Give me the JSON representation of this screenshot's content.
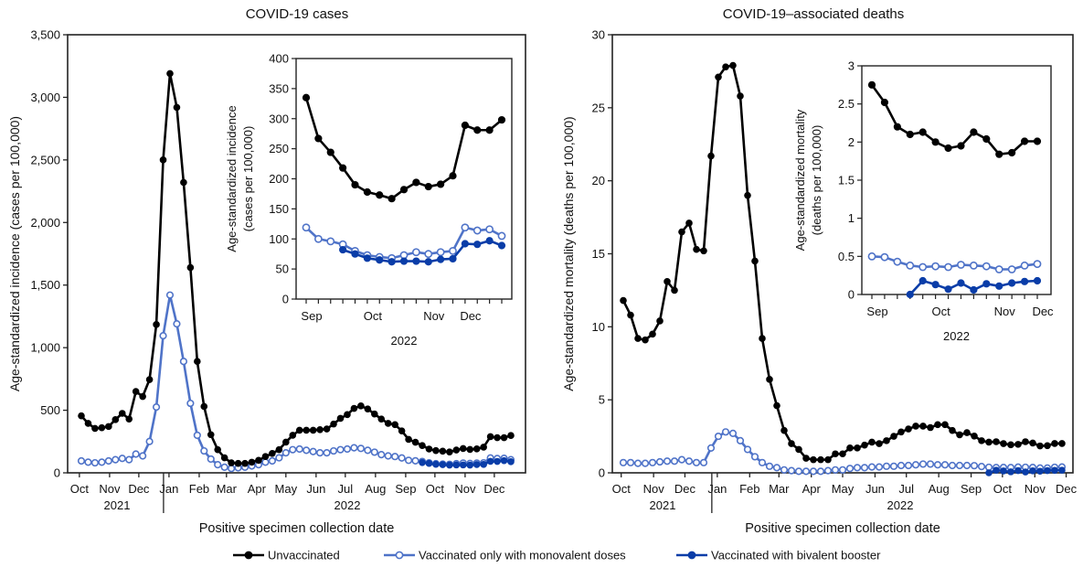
{
  "legend": {
    "items": [
      {
        "label": "Unvaccinated",
        "color": "#000000",
        "marker": "filled"
      },
      {
        "label": "Vaccinated only with monovalent doses",
        "color": "#4f73c8",
        "marker": "open"
      },
      {
        "label": "Vaccinated with bivalent booster",
        "color": "#0a3da8",
        "marker": "filled"
      }
    ]
  },
  "chart_data": [
    {
      "type": "line",
      "title": "COVID-19 cases",
      "xlabel": "Positive specimen collection date",
      "ylabel": "Age-standardized incidence (cases per 100,000)",
      "ylim": [
        0,
        3500
      ],
      "yticks": [
        0,
        500,
        1000,
        1500,
        2000,
        2500,
        3000,
        3500
      ],
      "ytick_labels": [
        "0",
        "500",
        "1,000",
        "1,500",
        "2,000",
        "2,500",
        "3,000",
        "3,500"
      ],
      "xticks": [
        {
          "date": "2021-10-01",
          "label": "Oct"
        },
        {
          "date": "2021-11-01",
          "label": "Nov"
        },
        {
          "date": "2021-12-01",
          "label": "Dec"
        },
        {
          "date": "2022-01-01",
          "label": "Jan"
        },
        {
          "date": "2022-02-01",
          "label": "Feb"
        },
        {
          "date": "2022-03-01",
          "label": "Mar"
        },
        {
          "date": "2022-04-01",
          "label": "Apr"
        },
        {
          "date": "2022-05-01",
          "label": "May"
        },
        {
          "date": "2022-06-01",
          "label": "Jun"
        },
        {
          "date": "2022-07-01",
          "label": "Jul"
        },
        {
          "date": "2022-08-01",
          "label": "Aug"
        },
        {
          "date": "2022-09-01",
          "label": "Sep"
        },
        {
          "date": "2022-10-01",
          "label": "Oct"
        },
        {
          "date": "2022-11-01",
          "label": "Nov"
        },
        {
          "date": "2022-12-01",
          "label": "Dec"
        }
      ],
      "year_labels": [
        "2021",
        "2022"
      ],
      "grid": false,
      "x": [
        "2021-10-03",
        "2021-10-10",
        "2021-10-17",
        "2021-10-24",
        "2021-10-31",
        "2021-11-07",
        "2021-11-14",
        "2021-11-21",
        "2021-11-28",
        "2021-12-05",
        "2021-12-12",
        "2021-12-19",
        "2021-12-26",
        "2022-01-02",
        "2022-01-09",
        "2022-01-16",
        "2022-01-23",
        "2022-01-30",
        "2022-02-06",
        "2022-02-13",
        "2022-02-20",
        "2022-02-27",
        "2022-03-06",
        "2022-03-13",
        "2022-03-20",
        "2022-03-27",
        "2022-04-03",
        "2022-04-10",
        "2022-04-17",
        "2022-04-24",
        "2022-05-01",
        "2022-05-08",
        "2022-05-15",
        "2022-05-22",
        "2022-05-29",
        "2022-06-05",
        "2022-06-12",
        "2022-06-19",
        "2022-06-26",
        "2022-07-03",
        "2022-07-10",
        "2022-07-17",
        "2022-07-24",
        "2022-07-31",
        "2022-08-07",
        "2022-08-14",
        "2022-08-21",
        "2022-08-28",
        "2022-09-04",
        "2022-09-11",
        "2022-09-18",
        "2022-09-25",
        "2022-10-02",
        "2022-10-09",
        "2022-10-16",
        "2022-10-23",
        "2022-10-30",
        "2022-11-06",
        "2022-11-13",
        "2022-11-20",
        "2022-11-27",
        "2022-12-04",
        "2022-12-11",
        "2022-12-18"
      ],
      "series": [
        {
          "name": "Vaccinated only with monovalent doses",
          "color": "#4f73c8",
          "marker": "open",
          "values": [
            95,
            85,
            80,
            85,
            95,
            105,
            115,
            105,
            150,
            135,
            250,
            525,
            1095,
            1420,
            1190,
            890,
            555,
            300,
            175,
            110,
            65,
            45,
            35,
            40,
            45,
            55,
            65,
            85,
            95,
            120,
            160,
            185,
            190,
            180,
            170,
            160,
            160,
            175,
            185,
            190,
            200,
            195,
            180,
            165,
            145,
            135,
            130,
            119,
            100,
            96,
            91,
            80,
            73,
            70,
            68,
            73,
            78,
            75,
            78,
            80,
            119,
            114,
            116,
            105
          ]
        },
        {
          "name": "Vaccinated with bivalent booster",
          "color": "#0a3da8",
          "marker": "filled",
          "values": [
            null,
            null,
            null,
            null,
            null,
            null,
            null,
            null,
            null,
            null,
            null,
            null,
            null,
            null,
            null,
            null,
            null,
            null,
            null,
            null,
            null,
            null,
            null,
            null,
            null,
            null,
            null,
            null,
            null,
            null,
            null,
            null,
            null,
            null,
            null,
            null,
            null,
            null,
            null,
            null,
            null,
            null,
            null,
            null,
            null,
            null,
            null,
            null,
            null,
            null,
            82,
            75,
            68,
            65,
            62,
            63,
            63,
            62,
            66,
            67,
            92,
            91,
            97,
            89
          ]
        },
        {
          "name": "Unvaccinated",
          "color": "#000000",
          "marker": "filled",
          "values": [
            455,
            395,
            355,
            360,
            370,
            425,
            475,
            430,
            650,
            610,
            745,
            1185,
            2500,
            3190,
            2920,
            2320,
            1640,
            890,
            530,
            305,
            185,
            120,
            80,
            75,
            75,
            85,
            100,
            130,
            155,
            185,
            245,
            300,
            340,
            340,
            340,
            345,
            350,
            390,
            435,
            465,
            515,
            535,
            510,
            470,
            430,
            395,
            385,
            335,
            267,
            244,
            218,
            190,
            178,
            173,
            167,
            182,
            194,
            187,
            191,
            205,
            289,
            281,
            281,
            298
          ]
        }
      ],
      "inset": {
        "ylabel_lines": [
          "Age-standardized incidence",
          "(cases per 100,000)"
        ],
        "ylim": [
          0,
          400
        ],
        "yticks": [
          0,
          50,
          100,
          150,
          200,
          250,
          300,
          350,
          400
        ],
        "ytick_labels": [
          "0",
          "50",
          "100",
          "150",
          "200",
          "250",
          "300",
          "350",
          "400"
        ],
        "xlim": [
          "2022-08-28",
          "2022-12-18"
        ],
        "xticks": [
          {
            "date": "2022-08-28",
            "label": "Sep"
          },
          {
            "date": "2022-10-02",
            "label": "Oct"
          },
          {
            "date": "2022-11-06",
            "label": "Nov"
          },
          {
            "date": "2022-11-27",
            "label": "Dec"
          }
        ],
        "year_label": "2022"
      }
    },
    {
      "type": "line",
      "title": "COVID-19–associated deaths",
      "xlabel": "Positive specimen collection date",
      "ylabel": "Age-standardized mortality (deaths per 100,000)",
      "ylim": [
        0,
        30
      ],
      "yticks": [
        0,
        5,
        10,
        15,
        20,
        25,
        30
      ],
      "ytick_labels": [
        "0",
        "5",
        "10",
        "15",
        "20",
        "25",
        "30"
      ],
      "xticks": [
        {
          "date": "2021-10-01",
          "label": "Oct"
        },
        {
          "date": "2021-11-01",
          "label": "Nov"
        },
        {
          "date": "2021-12-01",
          "label": "Dec"
        },
        {
          "date": "2022-01-01",
          "label": "Jan"
        },
        {
          "date": "2022-02-01",
          "label": "Feb"
        },
        {
          "date": "2022-03-01",
          "label": "Mar"
        },
        {
          "date": "2022-04-01",
          "label": "Apr"
        },
        {
          "date": "2022-05-01",
          "label": "May"
        },
        {
          "date": "2022-06-01",
          "label": "Jun"
        },
        {
          "date": "2022-07-01",
          "label": "Jul"
        },
        {
          "date": "2022-08-01",
          "label": "Aug"
        },
        {
          "date": "2022-09-01",
          "label": "Sep"
        },
        {
          "date": "2022-10-01",
          "label": "Oct"
        },
        {
          "date": "2022-11-01",
          "label": "Nov"
        },
        {
          "date": "2022-12-01",
          "label": "Dec"
        }
      ],
      "year_labels": [
        "2021",
        "2022"
      ],
      "grid": false,
      "x": [
        "2021-10-03",
        "2021-10-10",
        "2021-10-17",
        "2021-10-24",
        "2021-10-31",
        "2021-11-07",
        "2021-11-14",
        "2021-11-21",
        "2021-11-28",
        "2021-12-05",
        "2021-12-12",
        "2021-12-19",
        "2021-12-26",
        "2022-01-02",
        "2022-01-09",
        "2022-01-16",
        "2022-01-23",
        "2022-01-30",
        "2022-02-06",
        "2022-02-13",
        "2022-02-20",
        "2022-02-27",
        "2022-03-06",
        "2022-03-13",
        "2022-03-20",
        "2022-03-27",
        "2022-04-03",
        "2022-04-10",
        "2022-04-17",
        "2022-04-24",
        "2022-05-01",
        "2022-05-08",
        "2022-05-15",
        "2022-05-22",
        "2022-05-29",
        "2022-06-05",
        "2022-06-12",
        "2022-06-19",
        "2022-06-26",
        "2022-07-03",
        "2022-07-10",
        "2022-07-17",
        "2022-07-24",
        "2022-07-31",
        "2022-08-07",
        "2022-08-14",
        "2022-08-21",
        "2022-08-28",
        "2022-09-04",
        "2022-09-11",
        "2022-09-18",
        "2022-09-25",
        "2022-10-02",
        "2022-10-09",
        "2022-10-16",
        "2022-10-23",
        "2022-10-30",
        "2022-11-06",
        "2022-11-13",
        "2022-11-20",
        "2022-11-27"
      ],
      "series": [
        {
          "name": "Vaccinated only with monovalent doses",
          "color": "#4f73c8",
          "marker": "open",
          "values": [
            0.7,
            0.7,
            0.65,
            0.65,
            0.7,
            0.75,
            0.8,
            0.8,
            0.9,
            0.8,
            0.7,
            0.7,
            1.7,
            2.5,
            2.8,
            2.7,
            2.2,
            1.6,
            1.1,
            0.7,
            0.45,
            0.35,
            0.2,
            0.15,
            0.1,
            0.1,
            0.1,
            0.1,
            0.15,
            0.2,
            0.2,
            0.3,
            0.35,
            0.35,
            0.4,
            0.4,
            0.45,
            0.45,
            0.5,
            0.5,
            0.55,
            0.6,
            0.6,
            0.55,
            0.55,
            0.5,
            0.5,
            0.5,
            0.49,
            0.43,
            0.38,
            0.36,
            0.37,
            0.36,
            0.39,
            0.38,
            0.37,
            0.33,
            0.33,
            0.38,
            0.4
          ]
        },
        {
          "name": "Vaccinated with bivalent booster",
          "color": "#0a3da8",
          "marker": "filled",
          "values": [
            null,
            null,
            null,
            null,
            null,
            null,
            null,
            null,
            null,
            null,
            null,
            null,
            null,
            null,
            null,
            null,
            null,
            null,
            null,
            null,
            null,
            null,
            null,
            null,
            null,
            null,
            null,
            null,
            null,
            null,
            null,
            null,
            null,
            null,
            null,
            null,
            null,
            null,
            null,
            null,
            null,
            null,
            null,
            null,
            null,
            null,
            null,
            null,
            null,
            null,
            0,
            0.18,
            0.13,
            0.07,
            0.15,
            0.06,
            0.14,
            0.11,
            0.15,
            0.17,
            0.18
          ]
        },
        {
          "name": "Unvaccinated",
          "color": "#000000",
          "marker": "filled",
          "values": [
            11.8,
            10.8,
            9.2,
            9.1,
            9.5,
            10.4,
            13.1,
            12.5,
            16.5,
            17.1,
            15.3,
            15.2,
            21.7,
            27.1,
            27.8,
            27.9,
            25.8,
            19.0,
            14.5,
            9.2,
            6.4,
            4.6,
            2.9,
            2.0,
            1.6,
            1.0,
            0.9,
            0.9,
            0.9,
            1.3,
            1.3,
            1.7,
            1.7,
            1.9,
            2.1,
            2.0,
            2.2,
            2.5,
            2.8,
            3.0,
            3.2,
            3.2,
            3.1,
            3.3,
            3.3,
            2.9,
            2.6,
            2.75,
            2.52,
            2.2,
            2.1,
            2.13,
            2.0,
            1.92,
            1.95,
            2.13,
            2.04,
            1.84,
            1.86,
            2.01,
            2.01
          ]
        }
      ],
      "inset": {
        "ylabel_lines": [
          "Age-standardized mortality",
          "(deaths per 100,000)"
        ],
        "ylim": [
          0,
          3
        ],
        "yticks": [
          0,
          0.5,
          1,
          1.5,
          2,
          2.5,
          3
        ],
        "ytick_labels": [
          "0",
          "0.5",
          "1",
          "1.5",
          "2",
          "2.5",
          "3"
        ],
        "xlim": [
          "2022-08-28",
          "2022-11-27"
        ],
        "xticks": [
          {
            "date": "2022-08-28",
            "label": "Sep"
          },
          {
            "date": "2022-10-02",
            "label": "Oct"
          },
          {
            "date": "2022-11-06",
            "label": "Nov"
          },
          {
            "date": "2022-11-27",
            "label": "Dec"
          }
        ],
        "year_label": "2022"
      }
    }
  ]
}
